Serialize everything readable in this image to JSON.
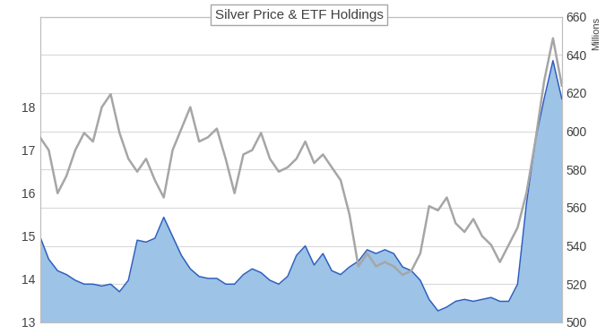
{
  "chart_data": {
    "type": "line",
    "title": "Silver Price & ETF Holdings",
    "y2label": "Millions",
    "x": [
      0,
      1,
      2,
      3,
      4,
      5,
      6,
      7,
      8,
      9,
      10,
      11,
      12,
      13,
      14,
      15,
      16,
      17,
      18,
      19,
      20,
      21,
      22,
      23,
      24,
      25,
      26,
      27,
      28,
      29,
      30,
      31,
      32,
      33,
      34,
      35,
      36,
      37,
      38,
      39,
      40,
      41,
      42,
      43,
      44,
      45,
      46,
      47,
      48,
      49,
      50,
      51,
      52,
      53,
      54,
      55,
      56,
      57,
      58,
      59
    ],
    "xlim": [
      0,
      59
    ],
    "ylim": [
      13,
      20.1
    ],
    "yticks": [
      13,
      14,
      15,
      16,
      17,
      18
    ],
    "y2lim": [
      500,
      660
    ],
    "y2ticks": [
      500,
      520,
      540,
      560,
      580,
      600,
      620,
      640,
      660
    ],
    "grid": true,
    "tick_labels": "y",
    "series": [
      {
        "type": "line",
        "color": "#a6a6a6",
        "values": [
          17.3,
          17.0,
          16.0,
          16.4,
          17.0,
          17.4,
          17.2,
          18.0,
          18.3,
          17.4,
          16.8,
          16.5,
          16.8,
          16.3,
          15.9,
          17.0,
          17.5,
          18.0,
          17.2,
          17.3,
          17.5,
          16.8,
          16.0,
          16.9,
          17.0,
          17.4,
          16.8,
          16.5,
          16.6,
          16.8,
          17.2,
          16.7,
          16.9,
          16.6,
          16.3,
          15.5,
          14.3,
          14.6,
          14.3,
          14.4,
          14.3,
          14.1,
          14.2,
          14.6,
          15.7,
          15.6,
          15.9,
          15.3,
          15.1,
          15.4,
          15.0,
          14.8,
          14.4,
          14.8,
          15.2,
          16.0,
          17.2,
          18.6,
          19.6,
          18.5
        ]
      },
      {
        "type": "area",
        "color": "#9dc3e6",
        "axis": "y2",
        "values": [
          545,
          533,
          527,
          525,
          522,
          520,
          520,
          519,
          520,
          516,
          522,
          543,
          542,
          544,
          555,
          545,
          535,
          528,
          524,
          523,
          523,
          520,
          520,
          525,
          528,
          526,
          522,
          520,
          524,
          535,
          540,
          530,
          536,
          527,
          525,
          529,
          532,
          538,
          536,
          538,
          536,
          529,
          527,
          522,
          512,
          506,
          508,
          511,
          512,
          511,
          512,
          513,
          511,
          511,
          520,
          562,
          595,
          617,
          637,
          617
        ]
      }
    ]
  }
}
